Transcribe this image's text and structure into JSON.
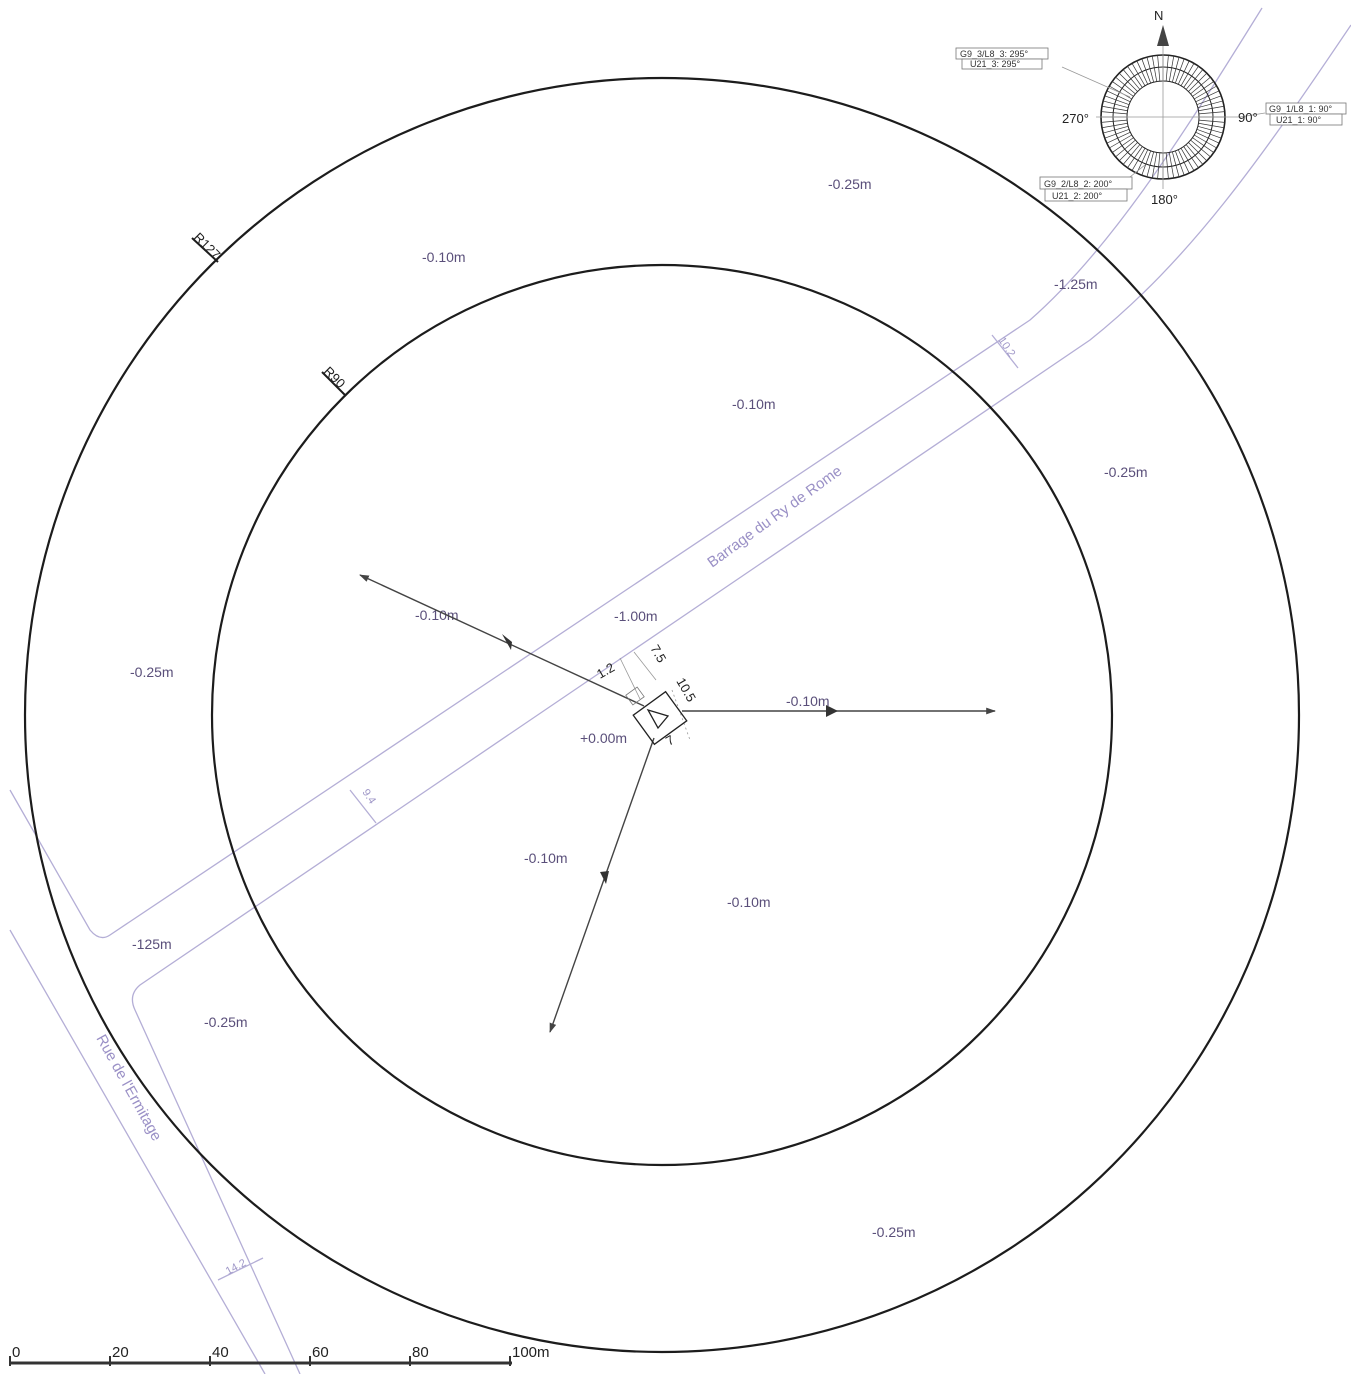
{
  "compass": {
    "north": "N",
    "deg_270": "270°",
    "deg_90": "90°",
    "deg_180": "180°",
    "callout_295": [
      "G9_3/L8_3: 295°",
      "U21_3: 295°"
    ],
    "callout_90": [
      "G9_1/L8_1: 90°",
      "U21_1: 90°"
    ],
    "callout_200": [
      "G9_2/L8_2: 200°",
      "U21_2: 200°"
    ]
  },
  "radii": {
    "outer": "R127",
    "inner": "R90"
  },
  "streets": {
    "main": "Barrage du Ry de Rome",
    "side": "Rue de l'Ermitage"
  },
  "levels": {
    "outer_top": "-0.25m",
    "outer_right": "-0.25m",
    "outer_left": "-0.25m",
    "outer_bottom_left": "-0.25m",
    "outer_bottom": "-0.25m",
    "outer_upper_left": "-0.10m",
    "road_upper_right": "-1.25m",
    "road_lower_left": "-125m",
    "inner_top": "-0.10m",
    "inner_vector_left": "-0.10m",
    "inner_road": "-1.00m",
    "inner_vector_right": "-0.10m",
    "inner_origin": "+0.00m",
    "inner_vector_down": "-0.10m",
    "inner_lower_right": "-0.10m"
  },
  "dimensions": {
    "road_width_upper": "10.2",
    "road_width_lower": "9.4",
    "side_road_width": "14.2",
    "offset_a": "1.2",
    "offset_b": "7.5",
    "offset_c": "10.5",
    "offset_d": "7"
  },
  "scale_bar": {
    "ticks": [
      "0",
      "20",
      "40",
      "60",
      "80",
      "100m"
    ]
  },
  "colors": {
    "rings": "#1c1c1c",
    "roads": "#b4aed6",
    "labels": "#5a4f7a",
    "vectors": "#444444"
  }
}
